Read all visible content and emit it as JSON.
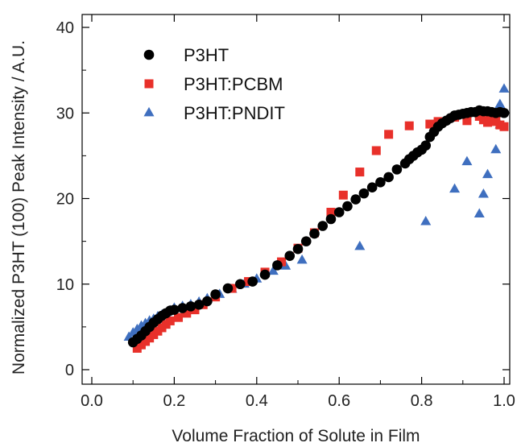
{
  "chart_data": {
    "type": "scatter",
    "title": "",
    "xlabel": "Volume Fraction of Solute in Film",
    "ylabel": "Normalized P3HT (100) Peak Intensity / A.U.",
    "xlim": [
      0.0,
      1.0
    ],
    "ylim": [
      0,
      40
    ],
    "xticks": [
      0.0,
      0.2,
      0.4,
      0.6,
      0.8,
      1.0
    ],
    "xtick_labels": [
      "0.0",
      "0.2",
      "0.4",
      "0.6",
      "0.8",
      "1.0"
    ],
    "yticks": [
      0,
      10,
      20,
      30,
      40
    ],
    "ytick_labels": [
      "0",
      "10",
      "20",
      "30",
      "40"
    ],
    "grid": false,
    "legend_position": "top-left",
    "series": [
      {
        "name": "P3HT",
        "marker": "circle",
        "color": "#000000",
        "x": [
          0.1,
          0.11,
          0.12,
          0.13,
          0.14,
          0.15,
          0.16,
          0.17,
          0.18,
          0.19,
          0.2,
          0.22,
          0.24,
          0.26,
          0.28,
          0.3,
          0.33,
          0.36,
          0.39,
          0.42,
          0.45,
          0.48,
          0.5,
          0.52,
          0.54,
          0.56,
          0.58,
          0.6,
          0.62,
          0.64,
          0.66,
          0.68,
          0.7,
          0.72,
          0.74,
          0.76,
          0.77,
          0.78,
          0.79,
          0.8,
          0.81,
          0.82,
          0.83,
          0.84,
          0.85,
          0.86,
          0.87,
          0.88,
          0.89,
          0.9,
          0.91,
          0.92,
          0.93,
          0.94,
          0.95,
          0.96,
          0.97,
          0.98,
          0.99,
          1.0
        ],
        "y": [
          3.2,
          3.6,
          4.0,
          4.5,
          5.0,
          5.5,
          5.9,
          6.3,
          6.6,
          6.9,
          7.0,
          7.2,
          7.4,
          7.6,
          8.0,
          8.8,
          9.5,
          10.0,
          10.3,
          11.1,
          12.2,
          13.3,
          14.1,
          15.0,
          15.9,
          16.8,
          17.6,
          18.4,
          19.1,
          19.9,
          20.6,
          21.3,
          21.9,
          22.5,
          23.4,
          24.1,
          24.6,
          25.0,
          25.4,
          25.7,
          26.2,
          27.2,
          27.8,
          28.4,
          28.8,
          29.1,
          29.4,
          29.7,
          29.8,
          29.9,
          30.0,
          30.1,
          30.1,
          30.3,
          30.2,
          30.2,
          30.1,
          30.0,
          30.1,
          30.0
        ]
      },
      {
        "name": "P3HT:PCBM",
        "marker": "square",
        "color": "#e8302a",
        "x": [
          0.11,
          0.12,
          0.13,
          0.14,
          0.15,
          0.16,
          0.17,
          0.18,
          0.19,
          0.21,
          0.23,
          0.25,
          0.27,
          0.3,
          0.34,
          0.38,
          0.42,
          0.46,
          0.5,
          0.54,
          0.58,
          0.61,
          0.65,
          0.69,
          0.72,
          0.77,
          0.82,
          0.84,
          0.88,
          0.91,
          0.94,
          0.95,
          0.96,
          0.97,
          0.98,
          0.99,
          1.0
        ],
        "y": [
          2.5,
          2.9,
          3.3,
          3.7,
          4.1,
          4.5,
          4.9,
          5.3,
          5.7,
          6.1,
          6.6,
          7.0,
          7.6,
          8.5,
          9.5,
          10.3,
          11.4,
          12.6,
          14.2,
          16.0,
          18.4,
          20.4,
          23.1,
          25.6,
          27.5,
          28.5,
          28.7,
          29.0,
          29.5,
          29.1,
          29.6,
          29.2,
          28.9,
          29.3,
          29.0,
          28.6,
          28.4
        ]
      },
      {
        "name": "P3HT:PNDIT",
        "marker": "triangle",
        "color": "#3f6fbf",
        "x": [
          0.09,
          0.1,
          0.11,
          0.12,
          0.13,
          0.14,
          0.15,
          0.16,
          0.17,
          0.18,
          0.19,
          0.2,
          0.22,
          0.24,
          0.26,
          0.28,
          0.31,
          0.34,
          0.37,
          0.4,
          0.44,
          0.47,
          0.51,
          0.65,
          0.81,
          0.88,
          0.91,
          0.94,
          0.95,
          0.96,
          0.98,
          0.99,
          0.99,
          1.0
        ],
        "y": [
          3.8,
          4.3,
          4.7,
          5.1,
          5.4,
          5.7,
          5.9,
          6.2,
          6.4,
          6.6,
          6.9,
          7.2,
          7.4,
          7.6,
          7.9,
          8.3,
          8.8,
          9.4,
          10.0,
          10.6,
          11.5,
          12.1,
          12.8,
          14.4,
          17.3,
          21.1,
          24.3,
          18.2,
          20.5,
          22.8,
          25.7,
          28.6,
          31.0,
          32.8
        ]
      }
    ]
  }
}
